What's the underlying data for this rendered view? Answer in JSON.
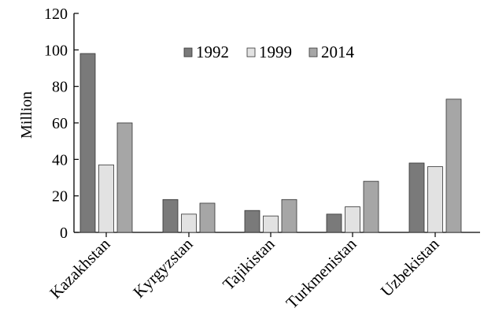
{
  "chart_data": {
    "type": "bar",
    "title": "",
    "xlabel": "",
    "ylabel": "Million",
    "categories": [
      "Kazakhstan",
      "Kyrgyzstan",
      "Tajikistan",
      "Turkmenistan",
      "Uzbekistan"
    ],
    "series": [
      {
        "name": "1992",
        "values": [
          98,
          18,
          12,
          10,
          38
        ],
        "color": "#7a7a7a"
      },
      {
        "name": "1999",
        "values": [
          37,
          10,
          9,
          14,
          36
        ],
        "color": "#e2e2e2"
      },
      {
        "name": "2014",
        "values": [
          60,
          16,
          18,
          28,
          73
        ],
        "color": "#a6a6a6"
      }
    ],
    "ylim": [
      0,
      120
    ],
    "yticks": [
      0,
      20,
      40,
      60,
      80,
      100,
      120
    ],
    "grid": false,
    "legend_position": "top-center"
  }
}
